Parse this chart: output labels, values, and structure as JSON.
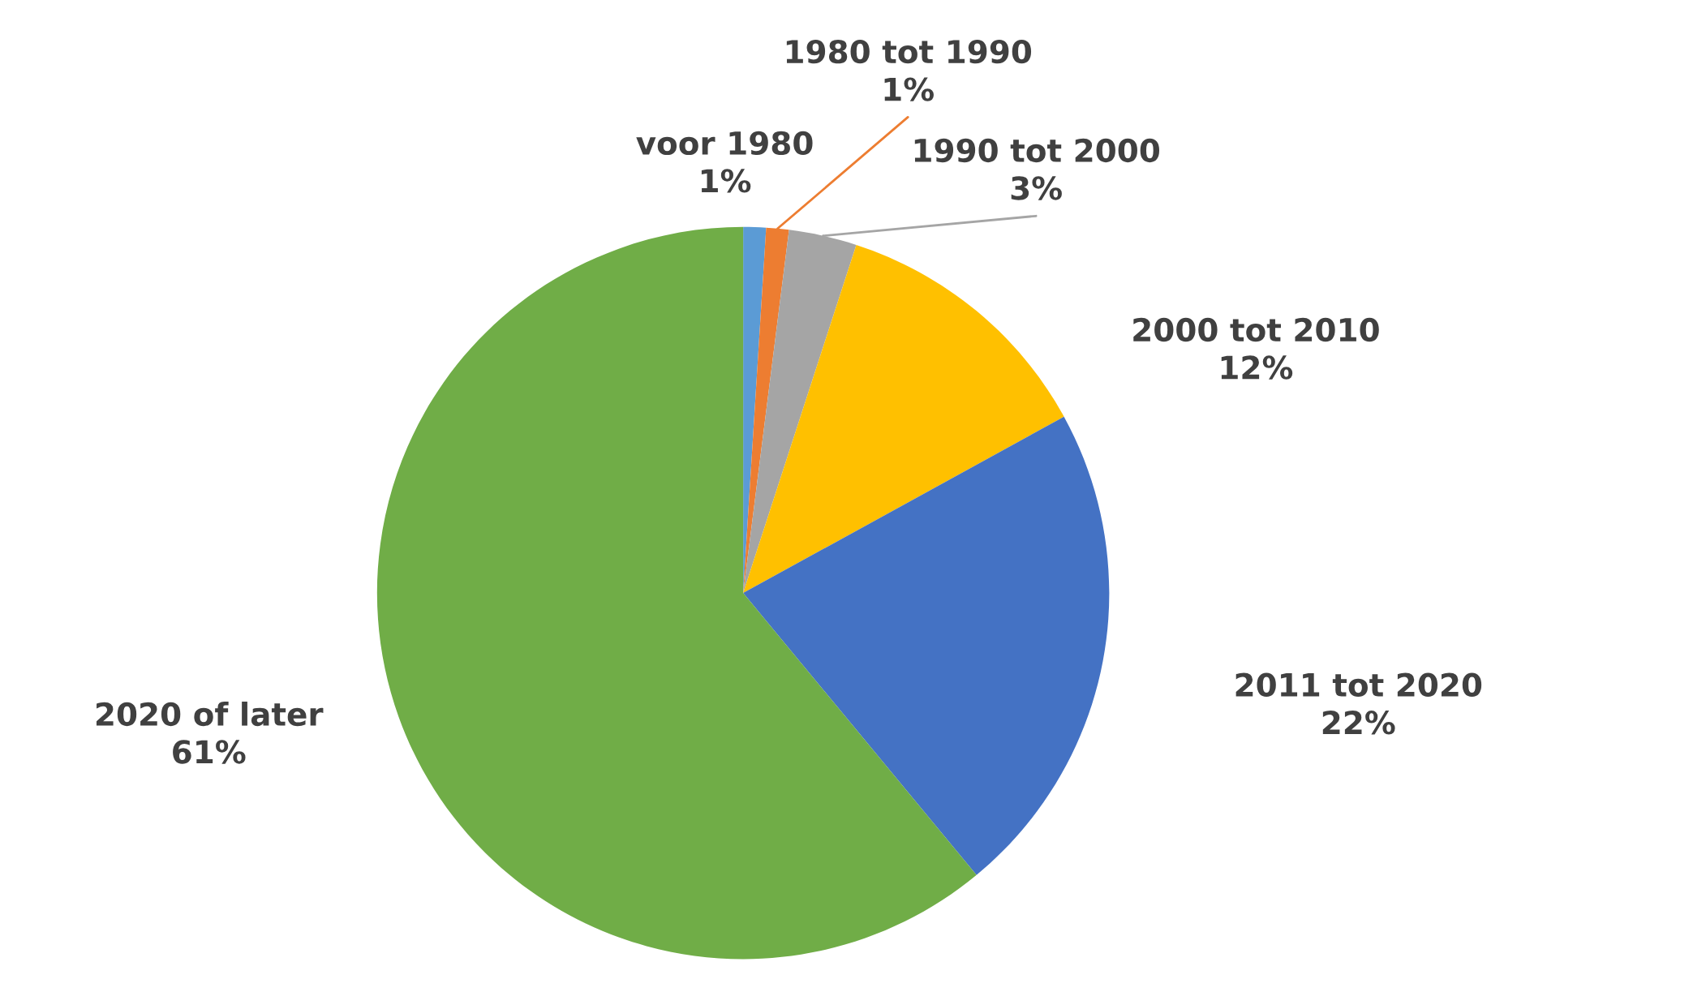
{
  "chart_data": {
    "type": "pie",
    "categories": [
      "voor 1980",
      "1980 tot 1990",
      "1990 tot 2000",
      "2000 tot 2010",
      "2011 tot 2020",
      "2020 of later"
    ],
    "values": [
      1,
      1,
      3,
      12,
      22,
      61
    ],
    "value_labels": [
      "1%",
      "1%",
      "3%",
      "12%",
      "22%",
      "61%"
    ],
    "colors": [
      "#5b9bd5",
      "#ed7d31",
      "#a5a5a5",
      "#ffc000",
      "#4472c4",
      "#70ad47"
    ]
  }
}
